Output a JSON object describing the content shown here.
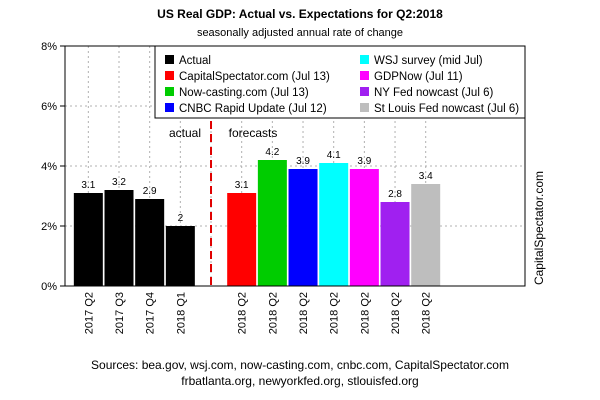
{
  "header": {
    "title": "US Real GDP: Actual vs. Expectations for Q2:2018",
    "subtitle": "seasonally adjusted annual rate of change"
  },
  "footer": {
    "sources_line1": "Sources: bea.gov, wsj.com, now-casting.com, cnbc.com, CapitalSpectator.com",
    "sources_line2": "frbatlanta.org, newyorkfed.org, stlouisfed.org"
  },
  "chart_data": {
    "type": "bar",
    "title": "US Real GDP: Actual vs. Expectations for Q2:2018",
    "subtitle": "seasonally adjusted annual rate of change",
    "ylim": [
      0,
      8
    ],
    "yticks": [
      0,
      2,
      4,
      6,
      8
    ],
    "ytick_format": "%",
    "grid": true,
    "legend_position": "top-right",
    "watermark": "CapitalSpectator.com",
    "annotations": {
      "actual_label": "actual",
      "forecasts_label": "forecasts"
    },
    "bars": [
      {
        "category": "2017 Q2",
        "value": 3.1,
        "label": "3.1",
        "color": "#000000",
        "group": "actual"
      },
      {
        "category": "2017 Q3",
        "value": 3.2,
        "label": "3.2",
        "color": "#000000",
        "group": "actual"
      },
      {
        "category": "2017 Q4",
        "value": 2.9,
        "label": "2.9",
        "color": "#000000",
        "group": "actual"
      },
      {
        "category": "2018 Q1",
        "value": 2.0,
        "label": "2",
        "color": "#000000",
        "group": "actual"
      },
      {
        "category": "2018 Q2",
        "value": 3.1,
        "label": "3.1",
        "color": "#ff0000",
        "group": "forecast"
      },
      {
        "category": "2018 Q2",
        "value": 4.2,
        "label": "4.2",
        "color": "#00cc00",
        "group": "forecast"
      },
      {
        "category": "2018 Q2",
        "value": 3.9,
        "label": "3.9",
        "color": "#0000ff",
        "group": "forecast"
      },
      {
        "category": "2018 Q2",
        "value": 4.1,
        "label": "4.1",
        "color": "#00ffff",
        "group": "forecast"
      },
      {
        "category": "2018 Q2",
        "value": 3.9,
        "label": "3.9",
        "color": "#ff00ff",
        "group": "forecast"
      },
      {
        "category": "2018 Q2",
        "value": 2.8,
        "label": "2.8",
        "color": "#a020f0",
        "group": "forecast"
      },
      {
        "category": "2018 Q2",
        "value": 3.4,
        "label": "3.4",
        "color": "#bebebe",
        "group": "forecast"
      }
    ],
    "legend": [
      {
        "name": "Actual",
        "color": "#000000"
      },
      {
        "name": "CapitalSpectator.com (Jul 13)",
        "color": "#ff0000"
      },
      {
        "name": "Now-casting.com (Jul 13)",
        "color": "#00cc00"
      },
      {
        "name": "CNBC Rapid Update (Jul 12)",
        "color": "#0000ff"
      },
      {
        "name": "WSJ survey (mid Jul)",
        "color": "#00ffff"
      },
      {
        "name": "GDPNow (Jul 11)",
        "color": "#ff00ff"
      },
      {
        "name": "NY Fed nowcast (Jul 6)",
        "color": "#a020f0"
      },
      {
        "name": "St Louis Fed nowcast (Jul 6)",
        "color": "#bebebe"
      }
    ]
  }
}
